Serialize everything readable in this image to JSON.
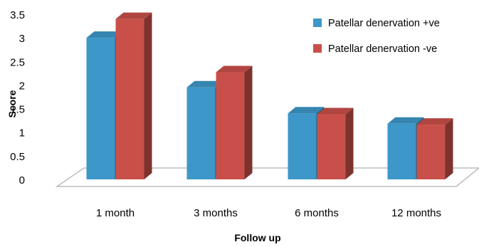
{
  "chart_data": {
    "type": "bar",
    "title": "",
    "xlabel": "Follow up",
    "ylabel": "Score",
    "categories": [
      "1 month",
      "3 months",
      "6 months",
      "12 months"
    ],
    "series": [
      {
        "name": "Patellar denervation +ve",
        "values": [
          3.0,
          1.95,
          1.4,
          1.18
        ],
        "color": "#3d97c8"
      },
      {
        "name": "Patellar denervation -ve",
        "values": [
          3.4,
          2.27,
          1.38,
          1.16
        ],
        "color": "#c9504a"
      }
    ],
    "ylim": [
      0,
      3.5
    ],
    "yticks": [
      "0",
      "0.5",
      "1",
      "1.5",
      "2",
      "2.5",
      "3",
      "3.5"
    ],
    "grid": false,
    "legend": "top-right"
  }
}
